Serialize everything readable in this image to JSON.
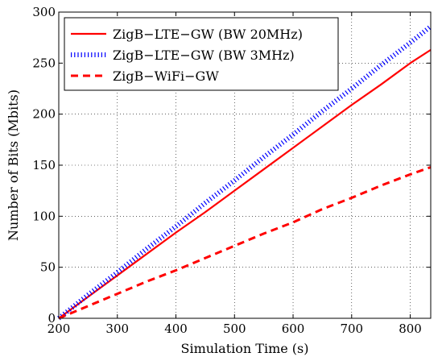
{
  "chart_data": {
    "type": "line",
    "title": "",
    "xlabel": "Simulation Time (s)",
    "ylabel": "Number of Bits (Mbits)",
    "xlim": [
      200,
      835
    ],
    "ylim": [
      0,
      300
    ],
    "xticks": [
      200,
      300,
      400,
      500,
      600,
      700,
      800
    ],
    "yticks": [
      0,
      50,
      100,
      150,
      200,
      250,
      300
    ],
    "grid": true,
    "legend_position": "top-left",
    "series": [
      {
        "name": "ZigB−LTE−GW (BW 20MHz)",
        "color": "#ff0000",
        "style": "solid",
        "x": [
          200,
          250,
          300,
          350,
          400,
          450,
          500,
          550,
          600,
          650,
          700,
          750,
          800,
          835
        ],
        "y": [
          0,
          21,
          42,
          63,
          84,
          104,
          125,
          146,
          167,
          188,
          209,
          229,
          250,
          263
        ]
      },
      {
        "name": "ZigB−LTE−GW (BW 3MHz)",
        "color": "#0000ff",
        "style": "dotted",
        "x": [
          200,
          250,
          300,
          350,
          400,
          450,
          500,
          550,
          600,
          650,
          700,
          750,
          800,
          835
        ],
        "y": [
          0,
          23,
          45,
          68,
          90,
          113,
          135,
          158,
          180,
          203,
          225,
          248,
          270,
          286
        ]
      },
      {
        "name": "ZigB−WiFi−GW",
        "color": "#ff0000",
        "style": "dashed",
        "x": [
          200,
          250,
          300,
          350,
          400,
          450,
          500,
          550,
          600,
          650,
          700,
          750,
          800,
          835
        ],
        "y": [
          0,
          12,
          24,
          36,
          47,
          59,
          71,
          83,
          94,
          107,
          118,
          130,
          141,
          148
        ]
      }
    ]
  }
}
